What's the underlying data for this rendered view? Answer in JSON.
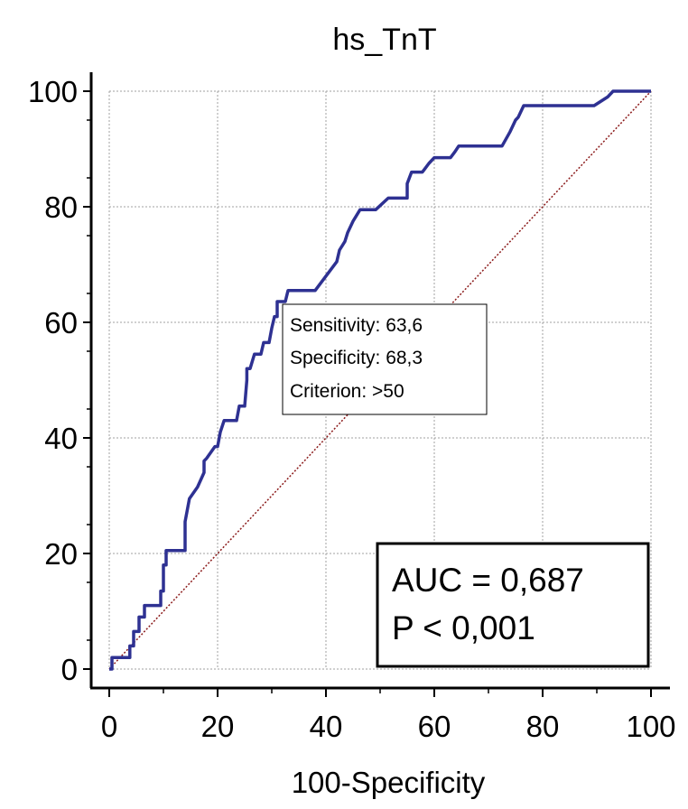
{
  "chart_data": {
    "type": "line",
    "title": "hs_TnT",
    "xlabel": "100-Specificity",
    "ylabel": "",
    "xlim": [
      0,
      100
    ],
    "ylim": [
      0,
      100
    ],
    "xticks": [
      0,
      20,
      40,
      60,
      80,
      100
    ],
    "yticks": [
      0,
      20,
      40,
      60,
      80,
      100
    ],
    "grid": true,
    "colors": {
      "roc": "#2e3192",
      "diagonal": "#8b1a1a",
      "grid": "#a0a0a0"
    },
    "series": [
      {
        "x": [
          0,
          0.5,
          0.5,
          3.8,
          3.8,
          4.5,
          4.5,
          5.5,
          5.5,
          6.5,
          6.5,
          9.5,
          9.5,
          10,
          10,
          10.5,
          10.5,
          14,
          14,
          14.3,
          14.8,
          14.8,
          16.3,
          16.3,
          17.5,
          17.5,
          18,
          19.5,
          20,
          20.5,
          21.2,
          23.5,
          24,
          24,
          25,
          25.4,
          25.4,
          26,
          26.8,
          28,
          28.5,
          29.5,
          30,
          30.5,
          31,
          31,
          32.5,
          33,
          34,
          35.7,
          37.5,
          38,
          42,
          42.5,
          43.5,
          44,
          45,
          46.3,
          47.5,
          49.2,
          51.5,
          51.8,
          53,
          55,
          55,
          55.8,
          56.5,
          57.8,
          58.2,
          59,
          60,
          61,
          63,
          63.8,
          64.5,
          65.5,
          72.5,
          74,
          75,
          75.5,
          76.5,
          88.5,
          89.5,
          92,
          93,
          100
        ],
        "y": [
          0,
          0,
          2,
          2,
          4,
          4,
          6.5,
          6.5,
          9,
          9,
          11,
          11,
          13.5,
          13.5,
          18,
          18,
          20.5,
          20.5,
          25.5,
          27,
          29.5,
          29.5,
          31.5,
          31.5,
          34,
          36,
          36.5,
          38.5,
          38.5,
          41,
          43,
          43,
          45.5,
          45.5,
          45.5,
          50,
          52,
          52,
          54.5,
          54.5,
          56.5,
          56.5,
          59,
          61,
          61,
          63.6,
          63.6,
          65.5,
          65.5,
          65.5,
          65.5,
          65.5,
          70.5,
          72.5,
          74,
          75.5,
          77.5,
          79.5,
          79.5,
          79.5,
          81.5,
          81.5,
          81.5,
          81.5,
          84,
          86,
          86,
          86,
          86.5,
          87.5,
          88.5,
          88.5,
          88.5,
          89.5,
          90.5,
          90.5,
          90.5,
          93,
          95,
          95.5,
          97.5,
          97.5,
          97.5,
          99,
          100,
          100
        ]
      }
    ],
    "reference_line": {
      "x": [
        0,
        100
      ],
      "y": [
        0,
        100
      ]
    },
    "annotation": {
      "sensitivity": "Sensitivity: 63,6",
      "specificity": "Specificity: 68,3",
      "criterion": "Criterion: >50",
      "point": [
        31.7,
        63.6
      ]
    },
    "legend": {
      "placement": "bottom-right",
      "auc": "AUC = 0,687",
      "p": "P < 0,001"
    }
  }
}
